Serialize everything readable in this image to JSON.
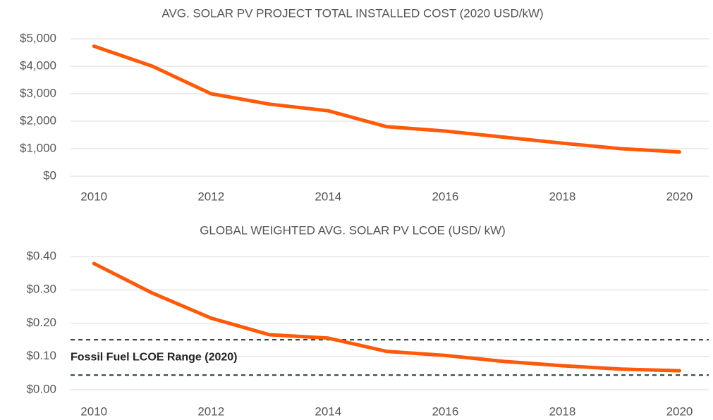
{
  "chart_data": [
    {
      "type": "line",
      "title": "AVG. SOLAR PV PROJECT TOTAL INSTALLED COST (2020 USD/kW)",
      "x": [
        2010,
        2011,
        2012,
        2013,
        2014,
        2015,
        2016,
        2017,
        2018,
        2019,
        2020
      ],
      "series": [
        {
          "name": null,
          "color": "#ff5a0a",
          "values": [
            4730,
            4000,
            3000,
            2620,
            2380,
            1800,
            1640,
            1420,
            1200,
            1000,
            880
          ]
        }
      ],
      "xlim": [
        2009.6,
        2020.5
      ],
      "xticks": [
        2010,
        2012,
        2014,
        2016,
        2018,
        2020
      ],
      "ylim": [
        0,
        5000
      ],
      "yticks": [
        {
          "value": 0,
          "label": "$0"
        },
        {
          "value": 1000,
          "label": "$1,000"
        },
        {
          "value": 2000,
          "label": "$2,000"
        },
        {
          "value": 3000,
          "label": "$3,000"
        },
        {
          "value": 4000,
          "label": "$4,000"
        },
        {
          "value": 5000,
          "label": "$5,000"
        }
      ],
      "grid": true
    },
    {
      "type": "line",
      "title": "GLOBAL WEIGHTED AVG. SOLAR PV LCOE (USD/ kW)",
      "x": [
        2010,
        2011,
        2012,
        2013,
        2014,
        2015,
        2016,
        2017,
        2018,
        2019,
        2020
      ],
      "series": [
        {
          "name": null,
          "color": "#ff5a0a",
          "values": [
            0.379,
            0.29,
            0.215,
            0.165,
            0.155,
            0.115,
            0.103,
            0.085,
            0.072,
            0.062,
            0.057
          ]
        }
      ],
      "xlim": [
        2009.6,
        2020.5
      ],
      "xticks": [
        2010,
        2012,
        2014,
        2016,
        2018,
        2020
      ],
      "ylim": [
        0,
        0.4
      ],
      "yticks": [
        {
          "value": 0,
          "label": "$0.00"
        },
        {
          "value": 0.1,
          "label": "$0.10"
        },
        {
          "value": 0.2,
          "label": "$0.20"
        },
        {
          "value": 0.3,
          "label": "$0.30"
        },
        {
          "value": 0.4,
          "label": "$0.40"
        }
      ],
      "grid": true,
      "annotation": "Fossil Fuel LCOE Range (2020)",
      "reference_lines": [
        0.15,
        0.044
      ]
    }
  ]
}
